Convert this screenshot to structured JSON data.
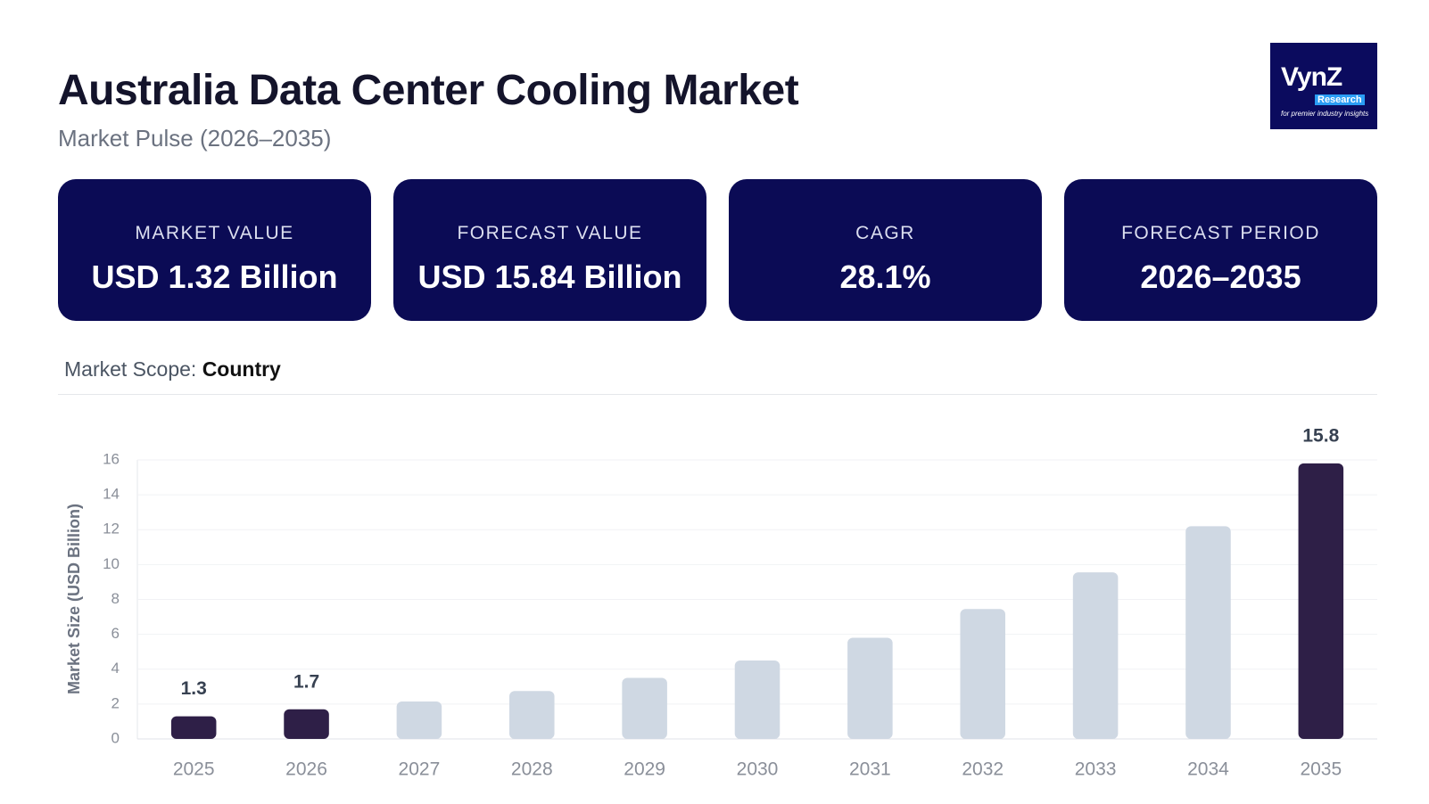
{
  "header": {
    "title": "Australia Data Center Cooling Market",
    "subtitle": "Market Pulse (2026–2035)"
  },
  "logo": {
    "name": "VynZ",
    "sub": "Research",
    "tagline": "for premier industry insights"
  },
  "cards": [
    {
      "label": "MARKET VALUE",
      "value": "USD 1.32 Billion"
    },
    {
      "label": "FORECAST VALUE",
      "value": "USD 15.84 Billion"
    },
    {
      "label": "CAGR",
      "value": "28.1%"
    },
    {
      "label": "FORECAST PERIOD",
      "value": "2026–2035"
    }
  ],
  "scope": {
    "label": "Market Scope:",
    "value": "Country"
  },
  "chart_data": {
    "type": "bar",
    "y_label": "Market Size (USD Billion)",
    "categories": [
      "2025",
      "2026",
      "2027",
      "2028",
      "2029",
      "2030",
      "2031",
      "2032",
      "2033",
      "2034",
      "2035"
    ],
    "values": [
      1.3,
      1.7,
      2.15,
      2.75,
      3.5,
      4.5,
      5.8,
      7.45,
      9.55,
      12.2,
      15.8
    ],
    "value_labels": [
      "1.3",
      "1.7",
      null,
      null,
      null,
      null,
      null,
      null,
      null,
      null,
      "15.8"
    ],
    "colors": [
      "#2e1f47",
      "#2e1f47",
      "#cfd8e3",
      "#cfd8e3",
      "#cfd8e3",
      "#cfd8e3",
      "#cfd8e3",
      "#cfd8e3",
      "#cfd8e3",
      "#cfd8e3",
      "#2e1f47"
    ],
    "ylim": [
      0,
      16
    ],
    "yticks": [
      0,
      2,
      4,
      6,
      8,
      10,
      12,
      14,
      16
    ],
    "grid": true
  }
}
